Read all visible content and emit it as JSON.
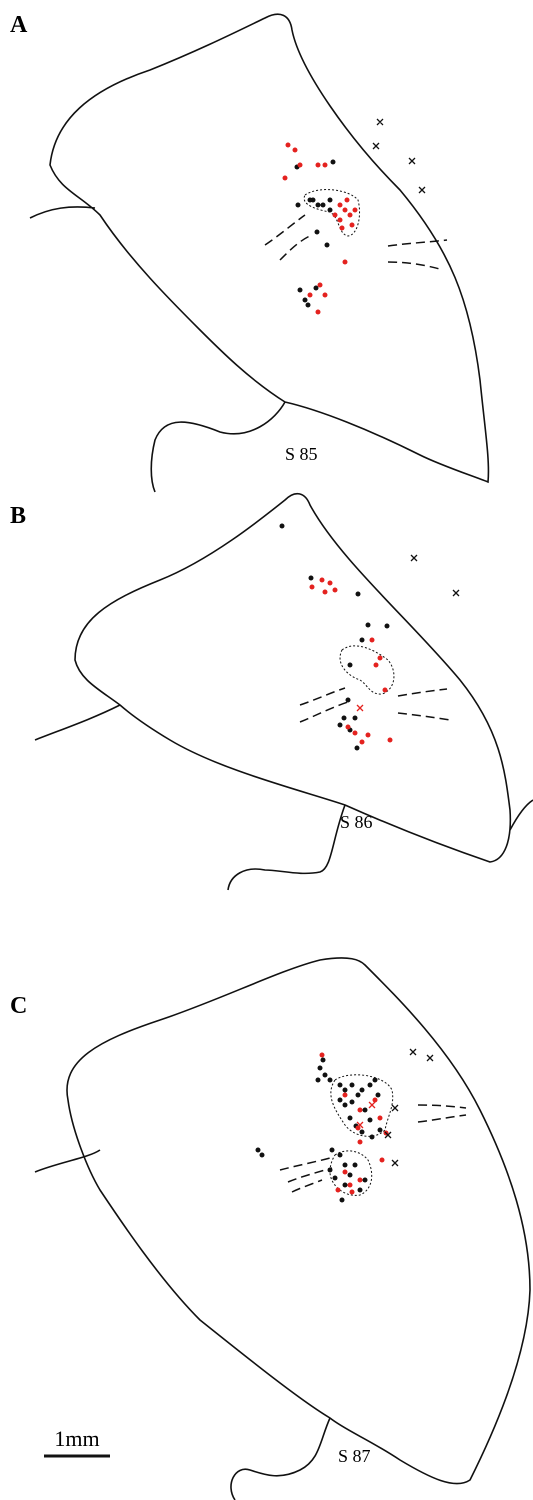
{
  "panels": [
    {
      "label": "A",
      "section": "S 85"
    },
    {
      "label": "B",
      "section": "S 86"
    },
    {
      "label": "C",
      "section": "S 87"
    }
  ],
  "scale_bar": {
    "label": "1mm"
  }
}
